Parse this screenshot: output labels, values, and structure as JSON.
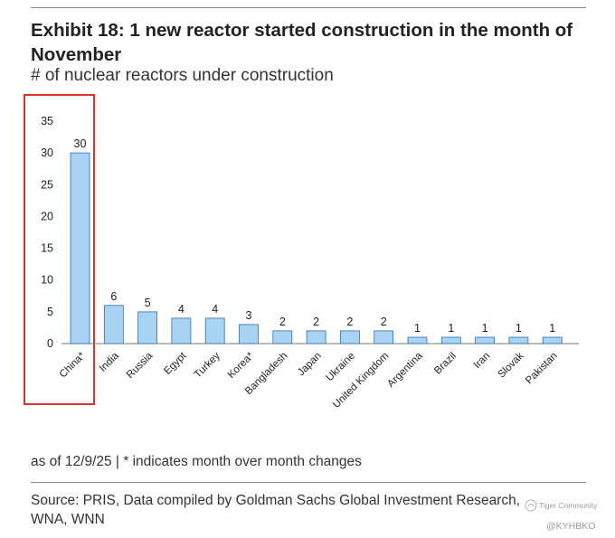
{
  "title": "Exhibit 18: 1 new reactor started construction in the month of November",
  "subtitle": "# of nuclear reactors under construction",
  "note": "as of 12/9/25 | * indicates month over month changes",
  "source": "Source: PRIS, Data compiled by Goldman Sachs Global Investment Research, WNA, WNN",
  "watermark": {
    "line1": "Tiger Community",
    "line2": "@KYHBKO"
  },
  "colors": {
    "bar_fill": "#a9d3f2",
    "bar_stroke": "#2f6fb0",
    "highlight": "#d9342b"
  },
  "chart_data": {
    "type": "bar",
    "title": "# of nuclear reactors under construction",
    "categories": [
      "China*",
      "India",
      "Russia",
      "Egypt",
      "Turkey",
      "Korea*",
      "Bangladesh",
      "Japan",
      "Ukraine",
      "United Kingdom",
      "Argentina",
      "Brazil",
      "Iran",
      "Slovak",
      "Pakistan"
    ],
    "values": [
      30,
      6,
      5,
      4,
      4,
      3,
      2,
      2,
      2,
      2,
      1,
      1,
      1,
      1,
      1
    ],
    "data_labels": [
      "30",
      "6",
      "5",
      "4",
      "4",
      "3",
      "2",
      "2",
      "2",
      "2",
      "1",
      "1",
      "1",
      "1",
      "1"
    ],
    "yticks": [
      0,
      5,
      10,
      15,
      20,
      25,
      30,
      35
    ],
    "ylim": [
      0,
      35
    ],
    "xlabel": "",
    "ylabel": "",
    "grid": false,
    "highlighted_category": "China*"
  }
}
